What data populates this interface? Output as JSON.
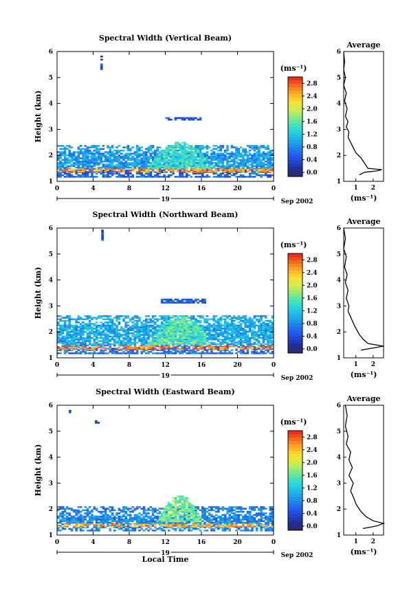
{
  "chart_data": [
    {
      "type": "heatmap",
      "title": "Spectral Width (Vertical Beam)",
      "ylabel": "Height (km)",
      "xlabel": "",
      "xticks": [
        "0",
        "4",
        "8",
        "12",
        "16",
        "20",
        "0"
      ],
      "yticks": [
        "1",
        "2",
        "3",
        "4",
        "5",
        "6"
      ],
      "xlim": [
        0,
        24
      ],
      "ylim": [
        1,
        6
      ],
      "date_label": "19",
      "date_suffix": "Sep 2002",
      "colorbar": {
        "label": "(ms⁻¹)",
        "ticks": [
          "0.0",
          "0.4",
          "0.8",
          "1.2",
          "1.6",
          "2.0",
          "2.4",
          "2.8"
        ],
        "range": [
          0,
          3.0
        ]
      },
      "average_profile": {
        "title": "Average",
        "xlabel": "(ms⁻¹)",
        "xticks": [
          "1",
          "2"
        ],
        "points": [
          [
            0.3,
            6.0
          ],
          [
            0.35,
            5.6
          ],
          [
            0.3,
            5.3
          ],
          [
            0.4,
            5.0
          ],
          [
            0.3,
            4.7
          ],
          [
            0.45,
            4.4
          ],
          [
            0.35,
            4.1
          ],
          [
            0.5,
            3.8
          ],
          [
            0.4,
            3.5
          ],
          [
            0.55,
            3.3
          ],
          [
            0.45,
            3.1
          ],
          [
            0.6,
            2.9
          ],
          [
            0.55,
            2.7
          ],
          [
            0.7,
            2.5
          ],
          [
            0.85,
            2.3
          ],
          [
            1.0,
            2.1
          ],
          [
            1.3,
            1.9
          ],
          [
            1.5,
            1.7
          ],
          [
            1.7,
            1.5
          ],
          [
            2.5,
            1.45
          ],
          [
            2.2,
            1.4
          ],
          [
            1.5,
            1.35
          ],
          [
            1.2,
            1.25
          ]
        ]
      },
      "features": [
        {
          "kind": "band",
          "t0": 0,
          "t1": 24,
          "h0": 1.15,
          "h1": 1.5,
          "level": 0.7
        },
        {
          "kind": "band",
          "t0": 0,
          "t1": 24,
          "h0": 1.35,
          "h1": 1.5,
          "level": 2.6
        },
        {
          "kind": "band",
          "t0": 0,
          "t1": 24,
          "h0": 1.5,
          "h1": 2.4,
          "level": 1.0
        },
        {
          "kind": "blob",
          "t0": 10,
          "t1": 17,
          "h0": 1.5,
          "h1": 2.5,
          "level": 1.5
        },
        {
          "kind": "strip",
          "t0": 12,
          "t1": 16,
          "h0": 3.35,
          "h1": 3.45,
          "level": 0.6
        },
        {
          "kind": "strip",
          "t0": 4.8,
          "t1": 5.0,
          "h0": 5.3,
          "h1": 5.8,
          "level": 0.5
        }
      ]
    },
    {
      "type": "heatmap",
      "title": "Spectral Width (Northward Beam)",
      "ylabel": "Height (km)",
      "xlabel": "",
      "xticks": [
        "0",
        "4",
        "8",
        "12",
        "16",
        "20",
        "0"
      ],
      "yticks": [
        "1",
        "2",
        "3",
        "4",
        "5",
        "6"
      ],
      "xlim": [
        0,
        24
      ],
      "ylim": [
        1,
        6
      ],
      "date_label": "19",
      "date_suffix": "Sep 2002",
      "colorbar": {
        "label": "(ms⁻¹)",
        "ticks": [
          "0.0",
          "0.4",
          "0.8",
          "1.2",
          "1.6",
          "2.0",
          "2.4",
          "2.8"
        ],
        "range": [
          0,
          3.0
        ]
      },
      "average_profile": {
        "title": "Average",
        "xlabel": "(ms⁻¹)",
        "xticks": [
          "1",
          "2"
        ],
        "points": [
          [
            0.3,
            6.0
          ],
          [
            0.4,
            5.6
          ],
          [
            0.3,
            5.2
          ],
          [
            0.45,
            4.9
          ],
          [
            0.35,
            4.5
          ],
          [
            0.5,
            4.2
          ],
          [
            0.4,
            3.9
          ],
          [
            0.55,
            3.6
          ],
          [
            0.45,
            3.3
          ],
          [
            0.6,
            3.0
          ],
          [
            0.55,
            2.8
          ],
          [
            0.75,
            2.5
          ],
          [
            0.95,
            2.2
          ],
          [
            1.2,
            1.9
          ],
          [
            1.45,
            1.7
          ],
          [
            1.7,
            1.55
          ],
          [
            2.6,
            1.45
          ],
          [
            2.0,
            1.38
          ],
          [
            1.3,
            1.3
          ]
        ]
      },
      "features": [
        {
          "kind": "band",
          "t0": 0,
          "t1": 24,
          "h0": 1.15,
          "h1": 1.5,
          "level": 0.8
        },
        {
          "kind": "band",
          "t0": 0,
          "t1": 24,
          "h0": 1.3,
          "h1": 1.45,
          "level": 2.7
        },
        {
          "kind": "band",
          "t0": 0,
          "t1": 24,
          "h0": 1.5,
          "h1": 2.6,
          "level": 1.1
        },
        {
          "kind": "blob",
          "t0": 10,
          "t1": 17,
          "h0": 1.5,
          "h1": 2.6,
          "level": 1.6
        },
        {
          "kind": "strip",
          "t0": 11.5,
          "t1": 16.5,
          "h0": 3.1,
          "h1": 3.25,
          "level": 0.6
        },
        {
          "kind": "strip",
          "t0": 4.9,
          "t1": 5.1,
          "h0": 5.4,
          "h1": 5.9,
          "level": 0.5
        }
      ]
    },
    {
      "type": "heatmap",
      "title": "Spectral Width (Eastward Beam)",
      "ylabel": "Height (km)",
      "xlabel": "Local Time",
      "xticks": [
        "0",
        "4",
        "8",
        "12",
        "16",
        "20",
        "0"
      ],
      "yticks": [
        "1",
        "2",
        "3",
        "4",
        "5",
        "6"
      ],
      "xlim": [
        0,
        24
      ],
      "ylim": [
        1,
        6
      ],
      "date_label": "19",
      "date_suffix": "Sep 2002",
      "colorbar": {
        "label": "(ms⁻¹)",
        "ticks": [
          "0.0",
          "0.4",
          "0.8",
          "1.2",
          "1.6",
          "2.0",
          "2.4",
          "2.8"
        ],
        "range": [
          0,
          3.0
        ]
      },
      "average_profile": {
        "title": "Average",
        "xlabel": "(ms⁻¹)",
        "xticks": [
          "1",
          "2"
        ],
        "points": [
          [
            0.4,
            6.0
          ],
          [
            0.5,
            5.6
          ],
          [
            0.4,
            5.2
          ],
          [
            0.55,
            4.8
          ],
          [
            0.45,
            4.5
          ],
          [
            0.7,
            4.2
          ],
          [
            0.6,
            3.9
          ],
          [
            0.8,
            3.6
          ],
          [
            0.6,
            3.3
          ],
          [
            0.85,
            3.0
          ],
          [
            0.7,
            2.7
          ],
          [
            0.9,
            2.4
          ],
          [
            1.0,
            2.2
          ],
          [
            1.3,
            1.9
          ],
          [
            1.6,
            1.7
          ],
          [
            2.0,
            1.55
          ],
          [
            2.6,
            1.45
          ],
          [
            2.2,
            1.35
          ],
          [
            1.4,
            1.25
          ]
        ]
      },
      "features": [
        {
          "kind": "band",
          "t0": 0,
          "t1": 24,
          "h0": 1.15,
          "h1": 1.45,
          "level": 0.9
        },
        {
          "kind": "band",
          "t0": 0,
          "t1": 24,
          "h0": 1.3,
          "h1": 1.45,
          "level": 2.5
        },
        {
          "kind": "band",
          "t0": 0,
          "t1": 24,
          "h0": 1.45,
          "h1": 2.1,
          "level": 0.9
        },
        {
          "kind": "blob",
          "t0": 11,
          "t1": 16,
          "h0": 1.5,
          "h1": 2.5,
          "level": 1.7
        },
        {
          "kind": "strip",
          "t0": 1.3,
          "t1": 1.5,
          "h0": 5.7,
          "h1": 5.8,
          "level": 0.5
        },
        {
          "kind": "strip",
          "t0": 4.2,
          "t1": 4.5,
          "h0": 5.3,
          "h1": 5.4,
          "level": 0.5
        }
      ]
    }
  ]
}
